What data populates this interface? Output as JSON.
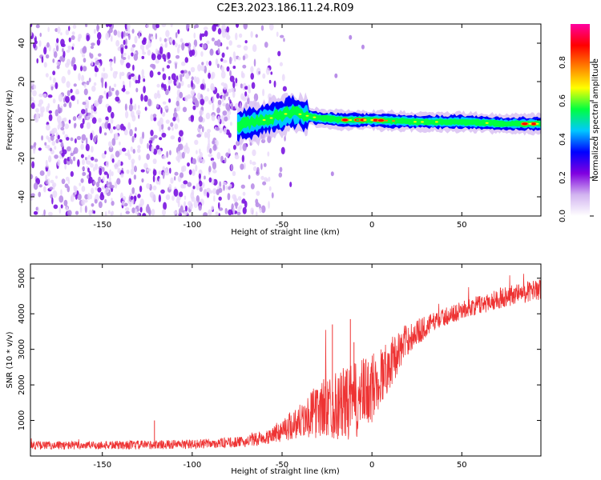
{
  "title": "C2E3.2023.186.11.24.R09",
  "chart_data": [
    {
      "type": "heatmap",
      "title": "C2E3.2023.186.11.24.R09",
      "xlabel": "Height of straight line (km)",
      "ylabel": "Frequency (Hz)",
      "xlim": [
        -190,
        94
      ],
      "ylim": [
        -50,
        50
      ],
      "xticks": [
        -150,
        -100,
        -50,
        0,
        50
      ],
      "yticks": [
        -40,
        -20,
        0,
        20,
        40
      ],
      "colorbar": {
        "label": "Normalized spectral amplitude",
        "range": [
          0.0,
          1.0
        ],
        "ticks": [
          0.0,
          0.2,
          0.4,
          0.6,
          0.8
        ],
        "colormap": [
          "#ffffff",
          "#d2b4f0",
          "#8000e0",
          "#0000ff",
          "#00c8ff",
          "#00ff40",
          "#ffff00",
          "#ff8000",
          "#ff0000",
          "#ff00a0"
        ]
      },
      "features": {
        "noise_region_x": [
          -190,
          -55
        ],
        "signal_start_x": -75,
        "signal_center_freq": [
          {
            "x": -75,
            "f": -3
          },
          {
            "x": -60,
            "f": 0
          },
          {
            "x": -45,
            "f": 4
          },
          {
            "x": -30,
            "f": 1
          },
          {
            "x": -15,
            "f": 0
          },
          {
            "x": 0,
            "f": 0
          },
          {
            "x": 25,
            "f": -1
          },
          {
            "x": 50,
            "f": -1
          },
          {
            "x": 75,
            "f": -2
          },
          {
            "x": 94,
            "f": -2
          }
        ]
      }
    },
    {
      "type": "line",
      "xlabel": "Height of straight line (km)",
      "ylabel": "SNR (10 * v/v)",
      "xlim": [
        -190,
        94
      ],
      "ylim": [
        0,
        5400
      ],
      "xticks": [
        -150,
        -100,
        -50,
        0,
        50
      ],
      "yticks": [
        1000,
        2000,
        3000,
        4000,
        5000
      ],
      "color": "#ee3333",
      "series": [
        {
          "envelope": [
            {
              "x": -190,
              "mean": 300,
              "spread": 120
            },
            {
              "x": -150,
              "mean": 300,
              "spread": 120
            },
            {
              "x": -100,
              "mean": 330,
              "spread": 130
            },
            {
              "x": -70,
              "mean": 400,
              "spread": 150
            },
            {
              "x": -55,
              "mean": 600,
              "spread": 250
            },
            {
              "x": -40,
              "mean": 1000,
              "spread": 500
            },
            {
              "x": -25,
              "mean": 1400,
              "spread": 900
            },
            {
              "x": -10,
              "mean": 1500,
              "spread": 1100
            },
            {
              "x": 0,
              "mean": 1900,
              "spread": 1000
            },
            {
              "x": 10,
              "mean": 2600,
              "spread": 700
            },
            {
              "x": 20,
              "mean": 3300,
              "spread": 450
            },
            {
              "x": 35,
              "mean": 3800,
              "spread": 250
            },
            {
              "x": 50,
              "mean": 4100,
              "spread": 250
            },
            {
              "x": 75,
              "mean": 4500,
              "spread": 300
            },
            {
              "x": 94,
              "mean": 4700,
              "spread": 300
            }
          ]
        }
      ]
    }
  ]
}
